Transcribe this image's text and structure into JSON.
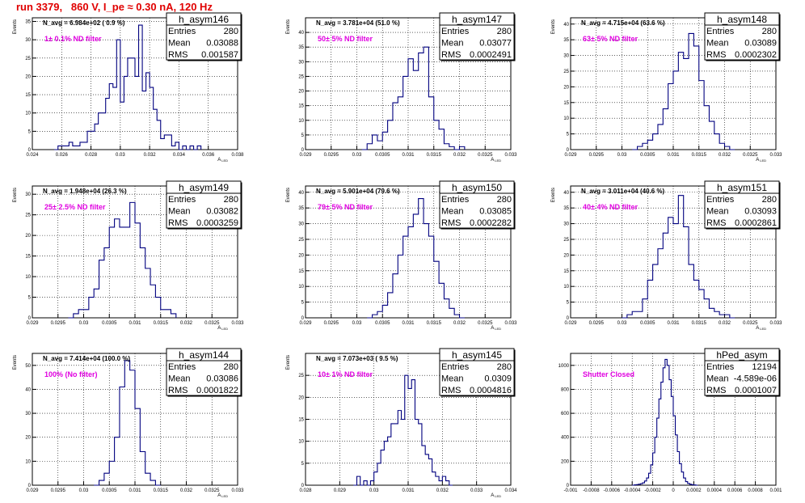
{
  "title": "run 3379,   860 V, I_pe ≈ 0.30 nA, 120 Hz",
  "chart_data": [
    {
      "type": "bar",
      "name": "h_asym146",
      "stats": {
        "entries_label": "Entries",
        "entries": "280",
        "mean_label": "Mean",
        "mean": "0.03088",
        "rms_label": "RMS",
        "rms": "0.001587"
      },
      "n_avg": "N_avg = 6.984e+02 ( 0.9 %)",
      "note": "1± 0.1% ND filter",
      "xlabel": "A",
      "xlabel_sub": "LED",
      "ylabel": "Events",
      "xlim": [
        0.024,
        0.038
      ],
      "ylim": [
        0,
        36
      ],
      "grid": true,
      "xticks": [
        "0.024",
        "0.026",
        "0.028",
        "0.03",
        "0.032",
        "0.034",
        "0.036",
        "0.038"
      ],
      "yticks": [
        "0",
        "5",
        "10",
        "15",
        "20",
        "25",
        "30",
        "35"
      ],
      "bins": {
        "x0": 0.0255,
        "width": 0.00025,
        "counts": [
          0,
          1,
          1,
          1,
          2,
          1,
          1,
          2,
          2,
          5,
          5,
          7,
          10,
          10,
          14,
          18,
          17,
          30,
          13,
          20,
          25,
          25,
          20,
          34,
          16,
          21,
          17,
          11,
          8,
          3,
          4,
          4,
          1,
          2,
          0,
          1,
          0,
          1,
          0,
          1
        ]
      }
    },
    {
      "type": "bar",
      "name": "h_asym147",
      "stats": {
        "entries_label": "Entries",
        "entries": "280",
        "mean_label": "Mean",
        "mean": "0.03077",
        "rms_label": "RMS",
        "rms": "0.0002491"
      },
      "n_avg": "N_avg = 3.781e+04 (51.0 %)",
      "note": "50± 5% ND filter",
      "xlabel": "A",
      "xlabel_sub": "LED",
      "ylabel": "Events",
      "xlim": [
        0.029,
        0.033
      ],
      "ylim": [
        0,
        45
      ],
      "grid": true,
      "xticks": [
        "0.029",
        "0.0295",
        "0.03",
        "0.0305",
        "0.031",
        "0.0315",
        "0.032",
        "0.0325",
        "0.033"
      ],
      "yticks": [
        "0",
        "5",
        "10",
        "15",
        "20",
        "25",
        "30",
        "35",
        "40"
      ],
      "bins": {
        "x0": 0.0301,
        "width": 0.0001,
        "counts": [
          0,
          2,
          5,
          3,
          6,
          10,
          16,
          18,
          25,
          31,
          27,
          33,
          35,
          18,
          10,
          7,
          2,
          1,
          0,
          1
        ]
      }
    },
    {
      "type": "bar",
      "name": "h_asym148",
      "stats": {
        "entries_label": "Entries",
        "entries": "280",
        "mean_label": "Mean",
        "mean": "0.03089",
        "rms_label": "RMS",
        "rms": "0.0002302"
      },
      "n_avg": "N_avg = 4.715e+04 (63.6 %)",
      "note": "63± 5% ND filter",
      "xlabel": "A",
      "xlabel_sub": "LED",
      "ylabel": "Events",
      "xlim": [
        0.029,
        0.033
      ],
      "ylim": [
        0,
        42
      ],
      "grid": true,
      "xticks": [
        "0.029",
        "0.0295",
        "0.03",
        "0.0305",
        "0.031",
        "0.0315",
        "0.032",
        "0.0325",
        "0.033"
      ],
      "yticks": [
        "0",
        "5",
        "10",
        "15",
        "20",
        "25",
        "30",
        "35",
        "40"
      ],
      "bins": {
        "x0": 0.0302,
        "width": 0.0001,
        "counts": [
          0,
          1,
          2,
          3,
          5,
          8,
          13,
          21,
          25,
          31,
          29,
          37,
          33,
          22,
          14,
          9,
          5,
          2,
          1,
          0
        ]
      }
    },
    {
      "type": "bar",
      "name": "h_asym149",
      "stats": {
        "entries_label": "Entries",
        "entries": "280",
        "mean_label": "Mean",
        "mean": "0.03082",
        "rms_label": "RMS",
        "rms": "0.0003259"
      },
      "n_avg": "N_avg = 1.948e+04 (26.3 %)",
      "note": "25± 2.5% ND filter",
      "xlabel": "A",
      "xlabel_sub": "LED",
      "ylabel": "Events",
      "xlim": [
        0.029,
        0.033
      ],
      "ylim": [
        0,
        32
      ],
      "grid": true,
      "xticks": [
        "0.029",
        "0.0295",
        "0.03",
        "0.0305",
        "0.031",
        "0.0315",
        "0.032",
        "0.0325",
        "0.033"
      ],
      "yticks": [
        "0",
        "5",
        "10",
        "15",
        "20",
        "25",
        "30"
      ],
      "bins": {
        "x0": 0.0297,
        "width": 0.0001,
        "counts": [
          0,
          1,
          2,
          2,
          5,
          7,
          14,
          17,
          22,
          24,
          22,
          22,
          28,
          23,
          17,
          12,
          8,
          5,
          2,
          2,
          1
        ]
      }
    },
    {
      "type": "bar",
      "name": "h_asym150",
      "stats": {
        "entries_label": "Entries",
        "entries": "280",
        "mean_label": "Mean",
        "mean": "0.03085",
        "rms_label": "RMS",
        "rms": "0.0002282"
      },
      "n_avg": "N_avg = 5.901e+04 (79.6 %)",
      "note": "79± 5% ND filter",
      "xlabel": "A",
      "xlabel_sub": "LED",
      "ylabel": "Events",
      "xlim": [
        0.029,
        0.033
      ],
      "ylim": [
        0,
        42
      ],
      "grid": true,
      "xticks": [
        "0.029",
        "0.0295",
        "0.03",
        "0.0305",
        "0.031",
        "0.0315",
        "0.032",
        "0.0325",
        "0.033"
      ],
      "yticks": [
        "0",
        "5",
        "10",
        "15",
        "20",
        "25",
        "30",
        "35",
        "40"
      ],
      "bins": {
        "x0": 0.0302,
        "width": 0.0001,
        "counts": [
          0,
          1,
          2,
          4,
          8,
          14,
          20,
          26,
          29,
          33,
          38,
          30,
          26,
          18,
          11,
          6,
          3,
          1,
          0
        ]
      }
    },
    {
      "type": "bar",
      "name": "h_asym151",
      "stats": {
        "entries_label": "Entries",
        "entries": "280",
        "mean_label": "Mean",
        "mean": "0.03093",
        "rms_label": "RMS",
        "rms": "0.0002861"
      },
      "n_avg": "N_avg = 3.011e+04 (40.6 %)",
      "note": "40± 4% ND filter",
      "xlabel": "A",
      "xlabel_sub": "LED",
      "ylabel": "Events",
      "xlim": [
        0.029,
        0.033
      ],
      "ylim": [
        0,
        42
      ],
      "grid": true,
      "xticks": [
        "0.029",
        "0.0295",
        "0.03",
        "0.0305",
        "0.031",
        "0.0315",
        "0.032",
        "0.0325",
        "0.033"
      ],
      "yticks": [
        "0",
        "5",
        "10",
        "15",
        "20",
        "25",
        "30",
        "35",
        "40"
      ],
      "bins": {
        "x0": 0.03,
        "width": 0.0001,
        "counts": [
          0,
          1,
          2,
          2,
          6,
          12,
          17,
          22,
          27,
          32,
          30,
          39,
          29,
          17,
          12,
          9,
          6,
          3,
          2,
          1,
          1,
          0
        ]
      }
    },
    {
      "type": "bar",
      "name": "h_asym144",
      "stats": {
        "entries_label": "Entries",
        "entries": "280",
        "mean_label": "Mean",
        "mean": "0.03086",
        "rms_label": "RMS",
        "rms": "0.0001822"
      },
      "n_avg": "N_avg = 7.414e+04 (100.0 %)",
      "note": "100% (No filter)",
      "xlabel": "A",
      "xlabel_sub": "LED",
      "ylabel": "Events",
      "xlim": [
        0.029,
        0.033
      ],
      "ylim": [
        0,
        55
      ],
      "grid": true,
      "xticks": [
        "0.029",
        "0.0295",
        "0.03",
        "0.0305",
        "0.031",
        "0.0315",
        "0.032",
        "0.0325",
        "0.033"
      ],
      "yticks": [
        "0",
        "10",
        "20",
        "30",
        "40",
        "50"
      ],
      "bins": {
        "x0": 0.0302,
        "width": 0.0001,
        "counts": [
          0,
          2,
          5,
          10,
          20,
          41,
          52,
          48,
          32,
          14,
          5,
          2,
          0
        ]
      }
    },
    {
      "type": "bar",
      "name": "h_asym145",
      "stats": {
        "entries_label": "Entries",
        "entries": "280",
        "mean_label": "Mean",
        "mean": "0.0309",
        "rms_label": "RMS",
        "rms": "0.0004816"
      },
      "n_avg": "N_avg = 7.073e+03 ( 9.5 %)",
      "note": "10± 1% ND filter",
      "xlabel": "A",
      "xlabel_sub": "LED",
      "ylabel": "Events",
      "xlim": [
        0.028,
        0.034
      ],
      "ylim": [
        0,
        30
      ],
      "grid": true,
      "xticks": [
        "0.028",
        "0.029",
        "0.03",
        "0.031",
        "0.032",
        "0.033",
        "0.034"
      ],
      "yticks": [
        "0",
        "5",
        "10",
        "15",
        "20",
        "25"
      ],
      "bins": {
        "x0": 0.0294,
        "width": 0.0001,
        "counts": [
          0,
          2,
          0,
          1,
          0,
          1,
          3,
          5,
          8,
          10,
          11,
          14,
          14,
          17,
          15,
          25,
          22,
          24,
          15,
          14,
          9,
          7,
          6,
          3,
          2,
          1,
          2,
          1,
          0
        ]
      }
    },
    {
      "type": "bar",
      "name": "hPed_asym",
      "stats": {
        "entries_label": "Entries",
        "entries": "12194",
        "mean_label": "Mean",
        "mean": "-4.589e-06",
        "rms_label": "RMS",
        "rms": "0.0001007"
      },
      "n_avg": "",
      "note": "Shutter Closed",
      "xlabel": "",
      "xlabel_sub": "",
      "ylabel": "",
      "xlim": [
        -0.001,
        0.001
      ],
      "ylim": [
        0,
        1100
      ],
      "grid": true,
      "xticks": [
        "-0.001",
        "-0.0008",
        "-0.0006",
        "-0.0004",
        "-0.0002",
        "0",
        "0.0002",
        "0.0004",
        "0.0006",
        "0.0008",
        "0.001"
      ],
      "yticks": [
        "0",
        "200",
        "400",
        "600",
        "800",
        "1000"
      ],
      "bins": {
        "x0": -0.0004,
        "width": 2e-05,
        "counts": [
          0,
          3,
          5,
          8,
          12,
          20,
          35,
          60,
          100,
          170,
          270,
          400,
          560,
          720,
          860,
          980,
          1050,
          1000,
          880,
          740,
          580,
          420,
          280,
          180,
          110,
          60,
          30,
          15,
          8,
          4,
          2,
          0
        ]
      }
    }
  ]
}
